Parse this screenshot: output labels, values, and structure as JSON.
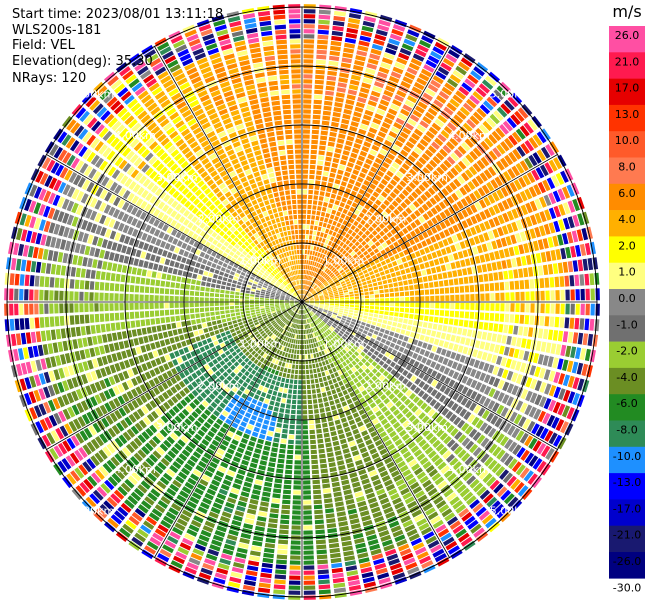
{
  "header": {
    "start_time": "Start time: 2023/08/01 13:11:18",
    "instrument": "WLS200s-181",
    "field": "Field: VEL",
    "elevation": "Elevation(deg): 35.30",
    "nrays": "NRays: 120"
  },
  "colorbar": {
    "unit": "m/s",
    "ticks": [
      "26.0",
      "21.0",
      "17.0",
      "13.0",
      "10.0",
      "8.0",
      "6.0",
      "4.0",
      "2.0",
      "1.0",
      "0.0",
      "-1.0",
      "-2.0",
      "-4.0",
      "-6.0",
      "-8.0",
      "-10.0",
      "-13.0",
      "-17.0",
      "-21.0",
      "-26.0",
      "-30.0"
    ],
    "colors": [
      "#ff4fa3",
      "#ff1a4f",
      "#e60000",
      "#ff3300",
      "#ff5a2a",
      "#ff7a50",
      "#ff8c00",
      "#ffb000",
      "#ffff00",
      "#ffff80",
      "#888888",
      "#707070",
      "#9acd32",
      "#6b8e23",
      "#228b22",
      "#2e8b57",
      "#1e90ff",
      "#0000ff",
      "#0000cd",
      "#191970",
      "#000080"
    ]
  },
  "chart_data": {
    "type": "heatmap",
    "projection": "PPI",
    "nrays": 120,
    "range_rings_km": [
      1.0,
      2.0,
      3.0,
      4.0,
      5.0
    ],
    "range_ring_labels": [
      "1.00km",
      "2.00km",
      "3.00km",
      "4.00km",
      "5.00km"
    ],
    "ray_lines_every_deg": 30,
    "field": "VEL",
    "units": "m/s",
    "value_levels": [
      -30.0,
      -26.0,
      -21.0,
      -17.0,
      -13.0,
      -10.0,
      -8.0,
      -6.0,
      -4.0,
      -2.0,
      -1.0,
      0.0,
      1.0,
      2.0,
      4.0,
      6.0,
      8.0,
      10.0,
      13.0,
      17.0,
      21.0,
      26.0
    ],
    "description_pattern": {
      "north_sector_m_s": 6.0,
      "east_sector_m_s": 2.0,
      "south_sector_m_s": -4.0,
      "southwest_core_m_s": -8.0,
      "west_sector_m_s": -4.0,
      "outer_noise_beyond_km": 4.5
    }
  }
}
